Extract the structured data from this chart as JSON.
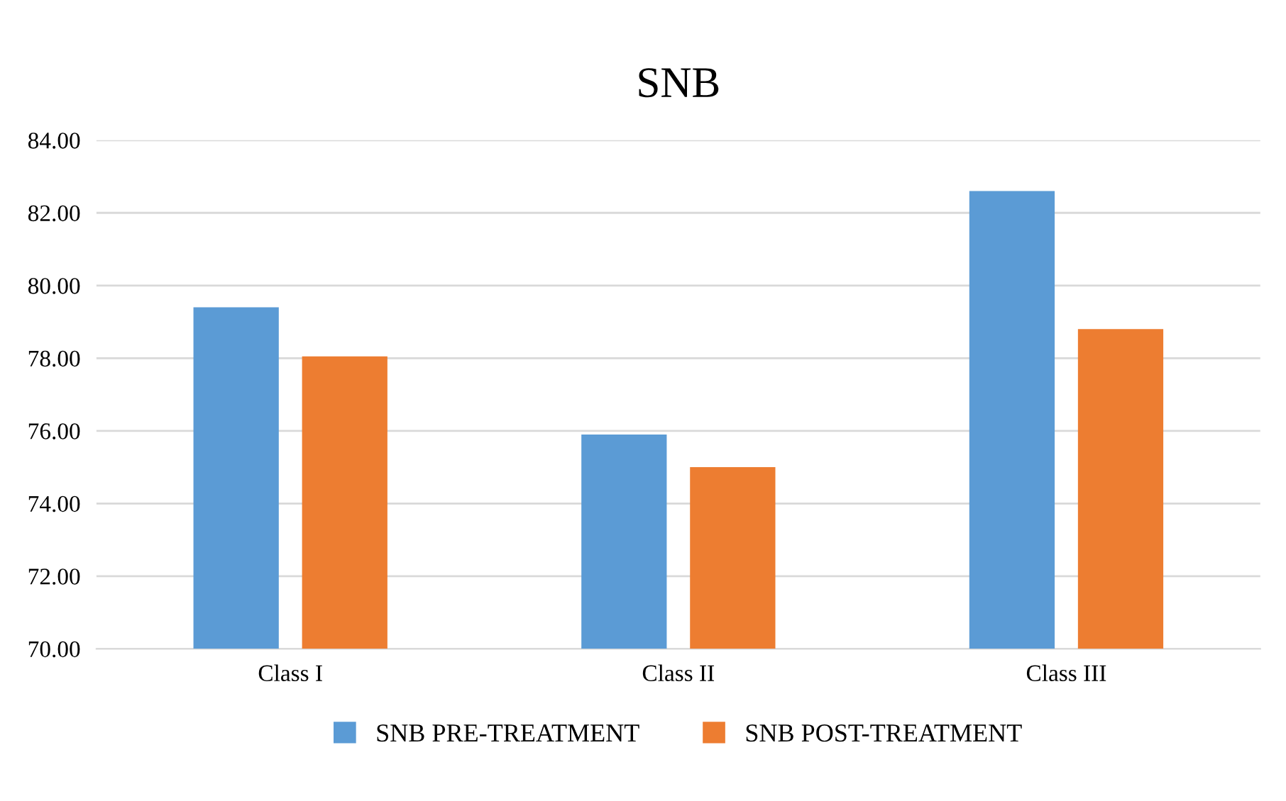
{
  "chart_data": {
    "type": "bar",
    "title": "SNB",
    "categories": [
      "Class I",
      "Class II",
      "Class III"
    ],
    "series": [
      {
        "name": "SNB PRE-TREATMENT",
        "color": "#5b9bd5",
        "values": [
          79.4,
          75.9,
          82.6
        ]
      },
      {
        "name": "SNB POST-TREATMENT",
        "color": "#ed7d31",
        "values": [
          78.05,
          75.0,
          78.8
        ]
      }
    ],
    "ylim": [
      70,
      84
    ],
    "yticks": [
      {
        "value": 70,
        "label": "70.00"
      },
      {
        "value": 72,
        "label": "72.00"
      },
      {
        "value": 74,
        "label": "74.00"
      },
      {
        "value": 76,
        "label": "76.00"
      },
      {
        "value": 78,
        "label": "78.00"
      },
      {
        "value": 80,
        "label": "80.00"
      },
      {
        "value": 82,
        "label": "82.00"
      },
      {
        "value": 84,
        "label": "84.00"
      }
    ],
    "grid": "y",
    "legend": "bottom"
  }
}
